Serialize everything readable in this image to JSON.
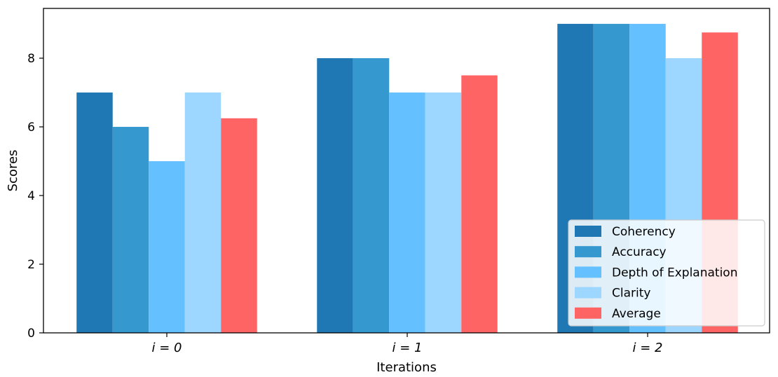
{
  "chart_data": {
    "type": "bar",
    "title": "",
    "xlabel": "Iterations",
    "ylabel": "Scores",
    "categories": [
      "i = 0",
      "i = 1",
      "i = 2"
    ],
    "ylim": [
      0,
      9.45
    ],
    "yticks": [
      0,
      2,
      4,
      6,
      8
    ],
    "grid": false,
    "legend": {
      "placement": "bottom-right"
    },
    "series": [
      {
        "name": "Coherency",
        "values": [
          7,
          8,
          9
        ],
        "color": "#1f77b4"
      },
      {
        "name": "Accuracy",
        "values": [
          6,
          8,
          9
        ],
        "color": "#3599d0"
      },
      {
        "name": "Depth of Explanation",
        "values": [
          5,
          7,
          9
        ],
        "color": "#64c0ff"
      },
      {
        "name": "Clarity",
        "values": [
          7,
          7,
          8
        ],
        "color": "#9dd6ff"
      },
      {
        "name": "Average",
        "values": [
          6.25,
          7.5,
          8.75
        ],
        "color": "#ff6465"
      }
    ]
  }
}
